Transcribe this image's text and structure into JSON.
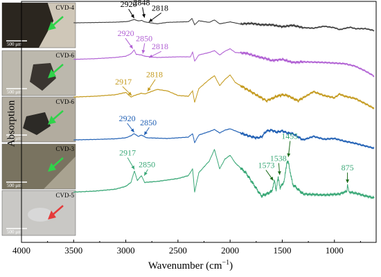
{
  "chart_data": {
    "type": "line",
    "xlabel_main": "Wavenumber (cm",
    "xlabel_sup": "−1",
    "xlabel_close": ")",
    "ylabel": "Absorption",
    "xlim": [
      4000,
      600
    ],
    "xticks": [
      4000,
      3500,
      3000,
      2500,
      2000,
      1500,
      1000
    ],
    "yticks_shown": false,
    "series": [
      {
        "name": "CVD-4",
        "color": "#3b3b3b",
        "points": [
          [
            3500,
            0.5
          ],
          [
            3300,
            0.53
          ],
          [
            3100,
            0.57
          ],
          [
            2980,
            0.64
          ],
          [
            2920,
            0.85
          ],
          [
            2880,
            0.7
          ],
          [
            2848,
            0.75
          ],
          [
            2818,
            0.6
          ],
          [
            2700,
            0.4
          ],
          [
            2600,
            0.55
          ],
          [
            2400,
            0.62
          ],
          [
            2365,
            0.95
          ],
          [
            2340,
            0.3
          ],
          [
            2300,
            0.72
          ],
          [
            2200,
            0.55
          ],
          [
            2150,
            0.8
          ],
          [
            2100,
            0.4
          ],
          [
            2000,
            0.6
          ],
          [
            1900,
            0.38
          ],
          [
            1800,
            0.45
          ],
          [
            1700,
            0.3
          ],
          [
            1600,
            0.3
          ],
          [
            1500,
            0.1
          ],
          [
            1400,
            0.25
          ],
          [
            1300,
            0.0
          ],
          [
            1200,
            -0.05
          ],
          [
            1100,
            0.15
          ],
          [
            1000,
            0.0
          ],
          [
            950,
            -0.2
          ],
          [
            850,
            0.05
          ],
          [
            800,
            -0.1
          ],
          [
            700,
            -0.1
          ],
          [
            620,
            -0.3
          ]
        ],
        "peaks": [
          {
            "label": "2920",
            "x": 2920,
            "arrow_color": "#000000"
          },
          {
            "label": "2848",
            "x": 2848,
            "arrow_color": "#000000"
          },
          {
            "label": "2818",
            "x": 2818,
            "arrow_color": "#000000"
          }
        ]
      },
      {
        "name": "CVD-6",
        "color": "#b05fd3",
        "points": [
          [
            3500,
            0.35
          ],
          [
            3300,
            0.4
          ],
          [
            3100,
            0.5
          ],
          [
            3000,
            0.6
          ],
          [
            2950,
            0.8
          ],
          [
            2920,
            1.1
          ],
          [
            2900,
            0.75
          ],
          [
            2850,
            0.7
          ],
          [
            2818,
            0.6
          ],
          [
            2700,
            0.5
          ],
          [
            2500,
            0.55
          ],
          [
            2380,
            0.55
          ],
          [
            2360,
            0.95
          ],
          [
            2340,
            0.2
          ],
          [
            2300,
            0.7
          ],
          [
            2200,
            0.9
          ],
          [
            2150,
            1.05
          ],
          [
            2100,
            0.7
          ],
          [
            2050,
            1.0
          ],
          [
            2000,
            1.2
          ],
          [
            1950,
            0.9
          ],
          [
            1850,
            0.85
          ],
          [
            1750,
            0.6
          ],
          [
            1650,
            0.4
          ],
          [
            1600,
            0.25
          ],
          [
            1500,
            0.35
          ],
          [
            1400,
            0.1
          ],
          [
            1300,
            0.15
          ],
          [
            1100,
            0.1
          ],
          [
            1000,
            0.05
          ],
          [
            900,
            0.0
          ],
          [
            800,
            -0.2
          ],
          [
            700,
            -0.6
          ],
          [
            620,
            -1.0
          ]
        ],
        "peaks": [
          {
            "label": "2920",
            "x": 2920,
            "arrow_color": "#b05fd3"
          },
          {
            "label": "2850",
            "x": 2850,
            "arrow_color": "#b05fd3"
          },
          {
            "label": "2818",
            "x": 2818,
            "arrow_color": "#b05fd3"
          }
        ]
      },
      {
        "name": "CVD-6",
        "color": "#c49a1e",
        "points": [
          [
            3500,
            0.45
          ],
          [
            3300,
            0.5
          ],
          [
            3100,
            0.6
          ],
          [
            3000,
            0.75
          ],
          [
            2950,
            0.45
          ],
          [
            2917,
            0.55
          ],
          [
            2850,
            0.7
          ],
          [
            2818,
            0.65
          ],
          [
            2700,
            0.95
          ],
          [
            2600,
            0.85
          ],
          [
            2500,
            0.55
          ],
          [
            2400,
            0.5
          ],
          [
            2360,
            0.85
          ],
          [
            2340,
            0.1
          ],
          [
            2300,
            1.0
          ],
          [
            2200,
            1.6
          ],
          [
            2150,
            1.85
          ],
          [
            2100,
            1.2
          ],
          [
            2050,
            1.6
          ],
          [
            2000,
            1.9
          ],
          [
            1950,
            1.4
          ],
          [
            1850,
            1.0
          ],
          [
            1750,
            0.6
          ],
          [
            1650,
            0.2
          ],
          [
            1550,
            0.5
          ],
          [
            1500,
            0.6
          ],
          [
            1450,
            0.55
          ],
          [
            1350,
            0.2
          ],
          [
            1200,
            0.8
          ],
          [
            1100,
            0.55
          ],
          [
            1000,
            0.4
          ],
          [
            950,
            0.65
          ],
          [
            900,
            0.5
          ],
          [
            800,
            0.35
          ],
          [
            700,
            0.0
          ],
          [
            620,
            -0.3
          ]
        ],
        "peaks": [
          {
            "label": "2917",
            "x": 2917,
            "arrow_color": "#c49a1e"
          },
          {
            "label": "2818",
            "x": 2818,
            "arrow_color": "#c49a1e"
          }
        ]
      },
      {
        "name": "CVD-3",
        "color": "#1f5fb4",
        "points": [
          [
            3500,
            0.3
          ],
          [
            3300,
            0.33
          ],
          [
            3100,
            0.38
          ],
          [
            3000,
            0.45
          ],
          [
            2950,
            0.6
          ],
          [
            2920,
            0.75
          ],
          [
            2880,
            0.55
          ],
          [
            2850,
            0.65
          ],
          [
            2800,
            0.45
          ],
          [
            2600,
            0.4
          ],
          [
            2400,
            0.5
          ],
          [
            2360,
            0.75
          ],
          [
            2340,
            0.1
          ],
          [
            2300,
            0.65
          ],
          [
            2200,
            0.9
          ],
          [
            2150,
            1.05
          ],
          [
            2100,
            0.8
          ],
          [
            2050,
            1.0
          ],
          [
            2000,
            1.1
          ],
          [
            1950,
            0.95
          ],
          [
            1850,
            0.65
          ],
          [
            1750,
            0.45
          ],
          [
            1700,
            0.5
          ],
          [
            1650,
            0.95
          ],
          [
            1600,
            1.0
          ],
          [
            1550,
            0.85
          ],
          [
            1500,
            0.95
          ],
          [
            1450,
            0.8
          ],
          [
            1400,
            0.75
          ],
          [
            1300,
            0.3
          ],
          [
            1200,
            0.55
          ],
          [
            1100,
            0.35
          ],
          [
            1000,
            0.4
          ],
          [
            900,
            0.2
          ],
          [
            800,
            0.05
          ],
          [
            700,
            -0.15
          ],
          [
            620,
            -0.3
          ]
        ],
        "peaks": [
          {
            "label": "2920",
            "x": 2920,
            "arrow_color": "#1f5fb4"
          },
          {
            "label": "2850",
            "x": 2850,
            "arrow_color": "#1f5fb4"
          }
        ]
      },
      {
        "name": "CVD-5",
        "color": "#3aa877",
        "points": [
          [
            3500,
            0.2
          ],
          [
            3300,
            0.25
          ],
          [
            3100,
            0.35
          ],
          [
            3000,
            0.5
          ],
          [
            2950,
            0.7
          ],
          [
            2917,
            1.3
          ],
          [
            2890,
            0.8
          ],
          [
            2850,
            1.05
          ],
          [
            2820,
            0.7
          ],
          [
            2700,
            0.75
          ],
          [
            2500,
            0.9
          ],
          [
            2400,
            1.05
          ],
          [
            2360,
            1.4
          ],
          [
            2340,
            0.2
          ],
          [
            2300,
            1.2
          ],
          [
            2200,
            1.8
          ],
          [
            2150,
            2.4
          ],
          [
            2100,
            1.4
          ],
          [
            2050,
            1.9
          ],
          [
            2000,
            2.1
          ],
          [
            1950,
            1.7
          ],
          [
            1850,
            1.2
          ],
          [
            1750,
            0.4
          ],
          [
            1700,
            0.0
          ],
          [
            1650,
            0.1
          ],
          [
            1600,
            0.25
          ],
          [
            1573,
            0.8
          ],
          [
            1560,
            0.3
          ],
          [
            1538,
            0.95
          ],
          [
            1520,
            0.4
          ],
          [
            1480,
            0.8
          ],
          [
            1455,
            1.8
          ],
          [
            1440,
            1.7
          ],
          [
            1400,
            0.6
          ],
          [
            1300,
            0.1
          ],
          [
            1100,
            0.05
          ],
          [
            950,
            0.1
          ],
          [
            880,
            0.25
          ],
          [
            875,
            0.6
          ],
          [
            860,
            0.2
          ],
          [
            800,
            0.15
          ],
          [
            700,
            0.0
          ],
          [
            620,
            -0.1
          ]
        ],
        "peaks": [
          {
            "label": "2917",
            "x": 2917,
            "arrow_color": "#3aa877"
          },
          {
            "label": "2850",
            "x": 2850,
            "arrow_color": "#3aa877"
          },
          {
            "label": "1573",
            "x": 1573,
            "arrow_color": "#1a6b1a"
          },
          {
            "label": "1538",
            "x": 1538,
            "arrow_color": "#1a6b1a"
          },
          {
            "label": "1455",
            "x": 1455,
            "arrow_color": "#1a6b1a"
          },
          {
            "label": "875",
            "x": 875,
            "arrow_color": "#1a6b1a"
          }
        ]
      }
    ],
    "insets": [
      {
        "label": "CVD-4",
        "scale": "500 μm",
        "arrow_color": "#2fd34a"
      },
      {
        "label": "CVD-6",
        "scale": "500 μm",
        "arrow_color": "#2fd34a"
      },
      {
        "label": "CVD-6",
        "scale": "500 μm",
        "arrow_color": "#2fd34a"
      },
      {
        "label": "CVD-3",
        "scale": "500 μm",
        "arrow_color": "#2fd34a"
      },
      {
        "label": "CVD-5",
        "scale": "500 μm",
        "arrow_color": "#e53a3a"
      }
    ]
  }
}
